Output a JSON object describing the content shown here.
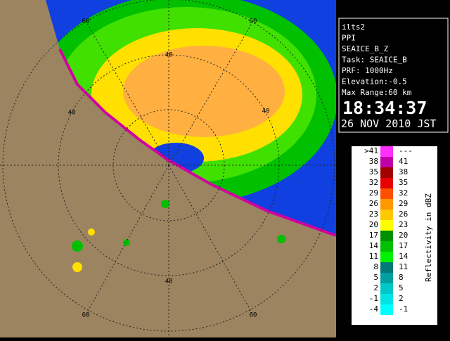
{
  "info": {
    "lines": [
      "ilts2",
      "PPI",
      "SEAICE_B_Z",
      "Task: SEAICE_B",
      "PRF: 1000Hz",
      "Elevation:-0.5",
      "Max Range:60 km"
    ],
    "time": "18:34:37",
    "date": "26 NOV 2010 JST"
  },
  "legend": {
    "title": "Reflectivity in dBZ",
    "rows": [
      {
        "low": ">41",
        "high": "---",
        "color": "#ff30ff"
      },
      {
        "low": "38",
        "high": "41",
        "color": "#c000a8"
      },
      {
        "low": "35",
        "high": "38",
        "color": "#a00000"
      },
      {
        "low": "32",
        "high": "35",
        "color": "#e80000"
      },
      {
        "low": "29",
        "high": "32",
        "color": "#ff5000"
      },
      {
        "low": "26",
        "high": "29",
        "color": "#ff9800"
      },
      {
        "low": "23",
        "high": "26",
        "color": "#ffc800"
      },
      {
        "low": "20",
        "high": "23",
        "color": "#ffff00"
      },
      {
        "low": "17",
        "high": "20",
        "color": "#009000"
      },
      {
        "low": "14",
        "high": "17",
        "color": "#00c000"
      },
      {
        "low": "11",
        "high": "14",
        "color": "#00f000"
      },
      {
        "low": "8",
        "high": "11",
        "color": "#007878"
      },
      {
        "low": "5",
        "high": "8",
        "color": "#00a0a0"
      },
      {
        "low": "2",
        "high": "5",
        "color": "#00c8c8"
      },
      {
        "low": "-1",
        "high": "2",
        "color": "#00e4e4"
      },
      {
        "low": "-4",
        "high": "-1",
        "color": "#00ffff"
      }
    ]
  },
  "range_labels": [
    "60",
    "60",
    "40",
    "40",
    "40",
    "40",
    "60",
    "60"
  ]
}
